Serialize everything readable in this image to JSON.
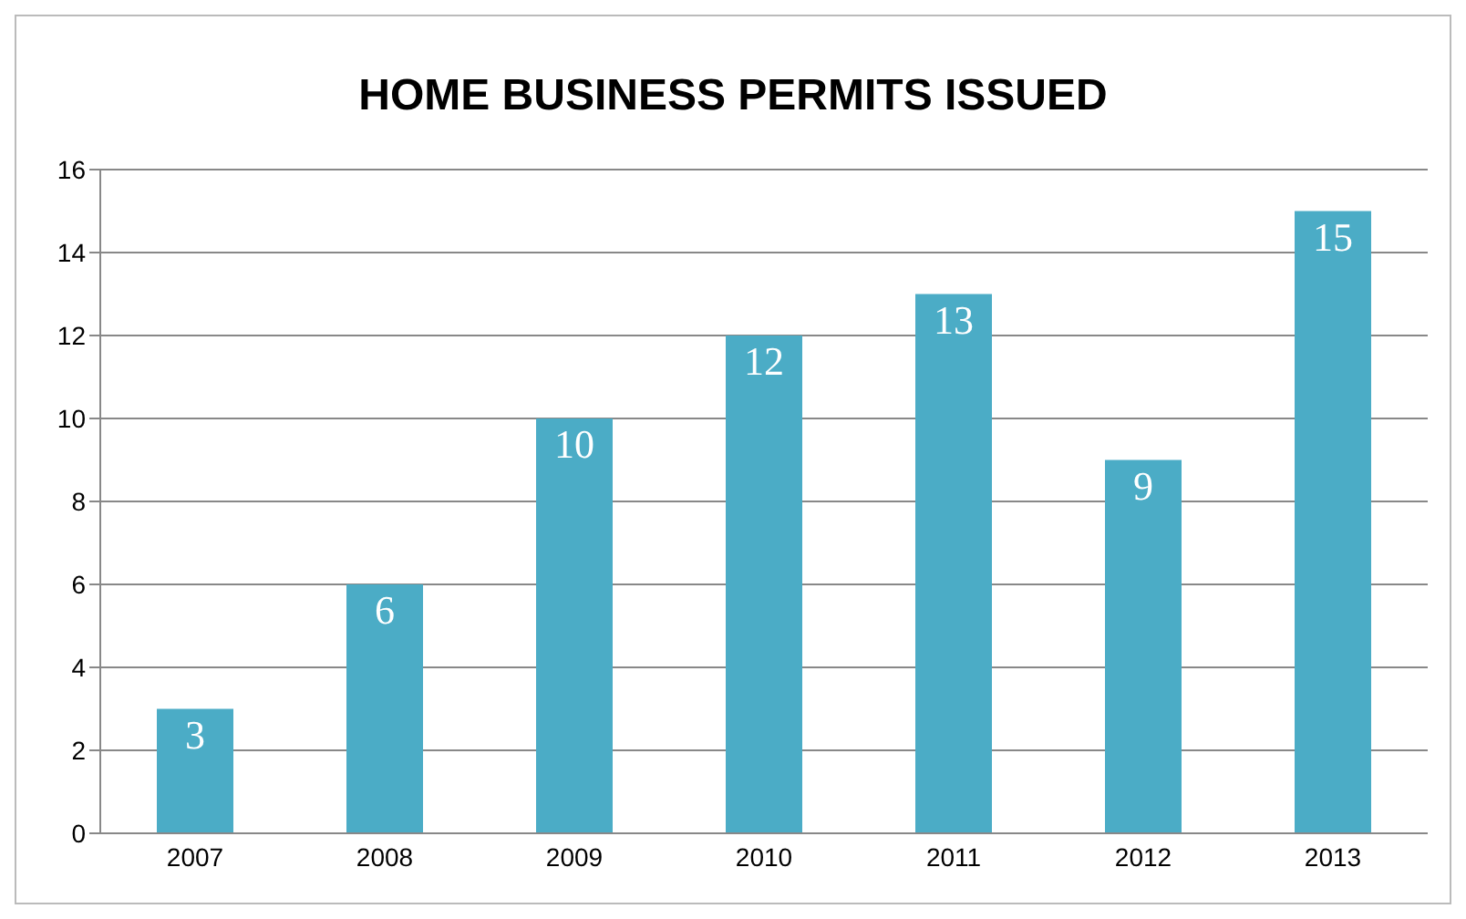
{
  "chart_data": {
    "type": "bar",
    "title": "HOME BUSINESS PERMITS ISSUED",
    "categories": [
      "2007",
      "2008",
      "2009",
      "2010",
      "2011",
      "2012",
      "2013"
    ],
    "values": [
      3,
      6,
      10,
      12,
      13,
      9,
      15
    ],
    "color": "#4bacc6",
    "ylim": [
      0,
      16
    ],
    "yticks": [
      0,
      2,
      4,
      6,
      8,
      10,
      12,
      14,
      16
    ],
    "grid": "y",
    "data_labels": true
  }
}
